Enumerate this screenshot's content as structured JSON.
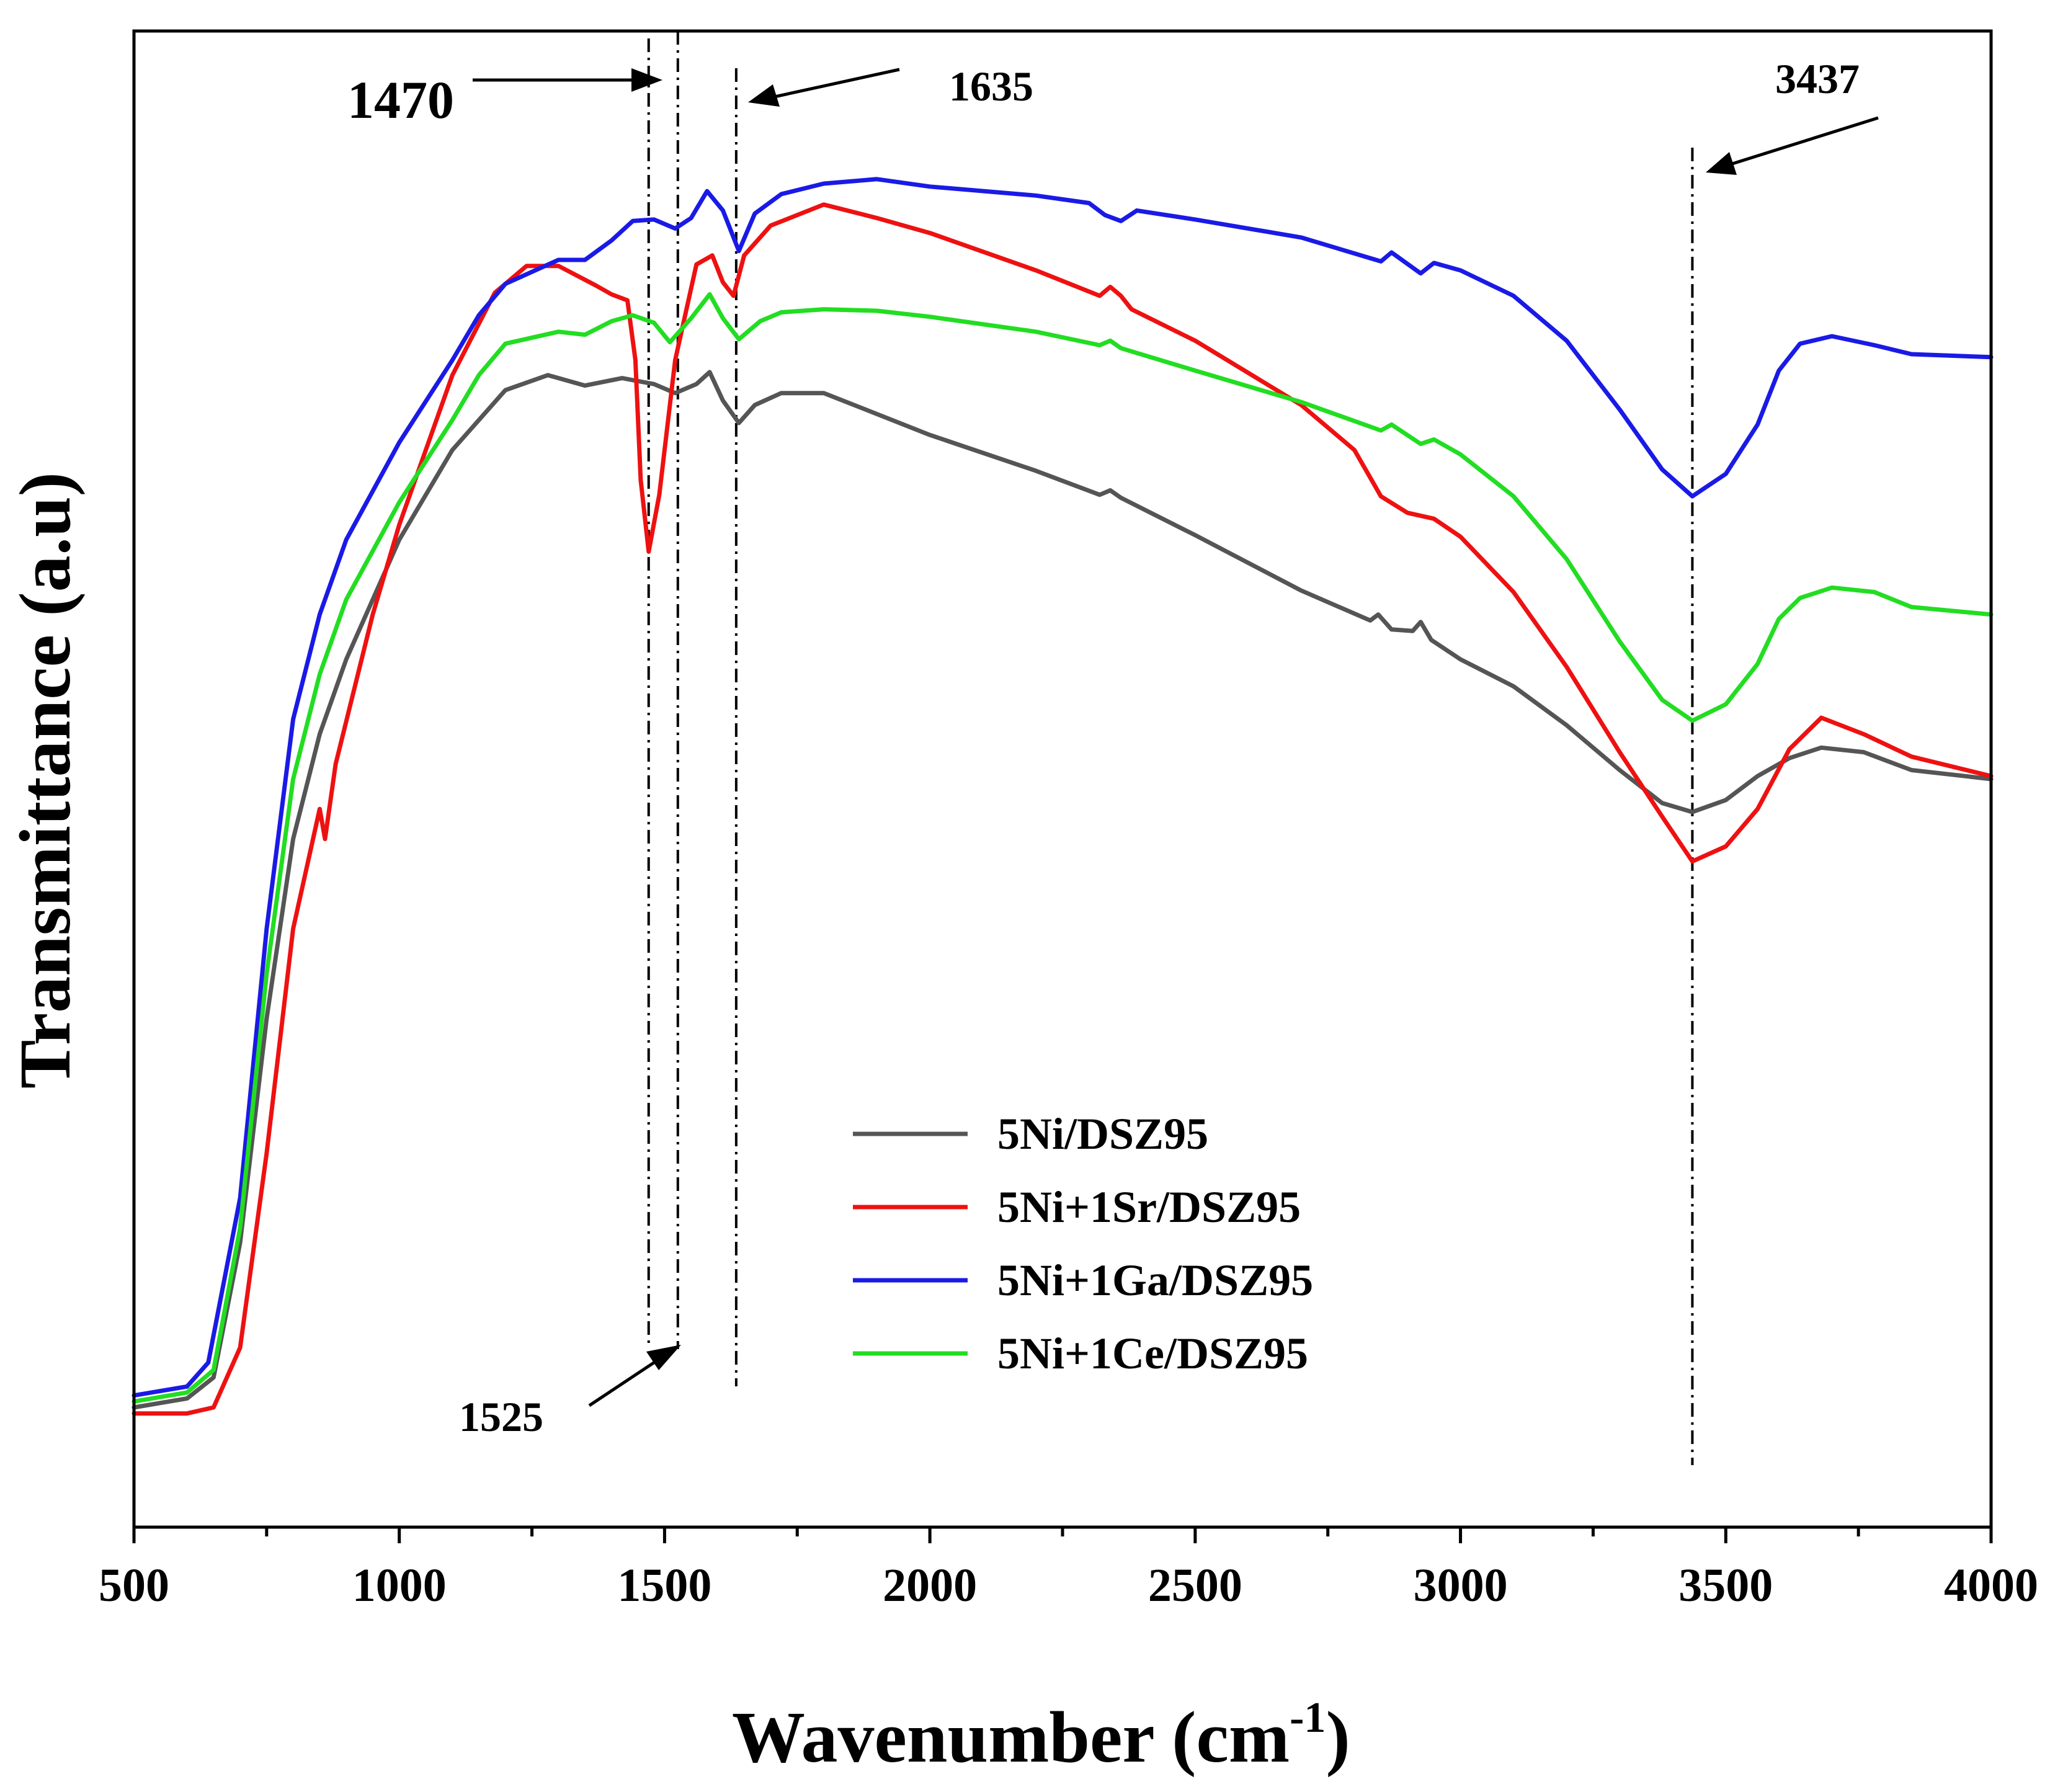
{
  "chart_data": {
    "type": "line",
    "title": "",
    "xlabel": "Wavenumber (cm",
    "xlabel_sup": "-1",
    "xlabel_close": ")",
    "ylabel": "Transmittance (a.u)",
    "xlim": [
      500,
      4000
    ],
    "ylim": [
      0,
      100
    ],
    "x_ticks": [
      500,
      1000,
      1500,
      2000,
      2500,
      3000,
      3500,
      4000
    ],
    "x_tick_labels": [
      "500",
      "1000",
      "1500",
      "2000",
      "2500",
      "3000",
      "3500",
      "4000"
    ],
    "y_ticks_shown": false,
    "legend_position": "lower-center",
    "series": [
      {
        "name": "5Ni/DSZ95",
        "color": "#555555",
        "points": [
          [
            500,
            8.0
          ],
          [
            600,
            8.6
          ],
          [
            650,
            10.0
          ],
          [
            700,
            19
          ],
          [
            750,
            34
          ],
          [
            800,
            46
          ],
          [
            850,
            53
          ],
          [
            900,
            58
          ],
          [
            1000,
            66
          ],
          [
            1100,
            72
          ],
          [
            1200,
            76
          ],
          [
            1280,
            77.0
          ],
          [
            1350,
            76.3
          ],
          [
            1420,
            76.8
          ],
          [
            1480,
            76.4
          ],
          [
            1520,
            75.8
          ],
          [
            1560,
            76.4
          ],
          [
            1585,
            77.2
          ],
          [
            1610,
            75.3
          ],
          [
            1640,
            73.8
          ],
          [
            1670,
            75.0
          ],
          [
            1720,
            75.8
          ],
          [
            1800,
            75.8
          ],
          [
            2000,
            73.0
          ],
          [
            2200,
            70.6
          ],
          [
            2320,
            69.0
          ],
          [
            2340,
            69.3
          ],
          [
            2360,
            68.8
          ],
          [
            2500,
            66.3
          ],
          [
            2700,
            62.6
          ],
          [
            2830,
            60.6
          ],
          [
            2845,
            61.0
          ],
          [
            2870,
            60.0
          ],
          [
            2910,
            59.9
          ],
          [
            2925,
            60.5
          ],
          [
            2945,
            59.3
          ],
          [
            3000,
            58.0
          ],
          [
            3100,
            56.2
          ],
          [
            3200,
            53.6
          ],
          [
            3300,
            50.6
          ],
          [
            3380,
            48.4
          ],
          [
            3437,
            47.8
          ],
          [
            3500,
            48.6
          ],
          [
            3560,
            50.2
          ],
          [
            3620,
            51.4
          ],
          [
            3680,
            52.1
          ],
          [
            3760,
            51.8
          ],
          [
            3850,
            50.6
          ],
          [
            4000,
            50.0
          ]
        ]
      },
      {
        "name": "5Ni+1Sr/DSZ95",
        "color": "#ee1111",
        "points": [
          [
            500,
            7.6
          ],
          [
            600,
            7.6
          ],
          [
            650,
            8.0
          ],
          [
            700,
            12
          ],
          [
            750,
            25
          ],
          [
            800,
            40
          ],
          [
            850,
            48
          ],
          [
            860,
            46
          ],
          [
            880,
            51
          ],
          [
            950,
            61
          ],
          [
            1000,
            67
          ],
          [
            1100,
            77
          ],
          [
            1180,
            82.5
          ],
          [
            1240,
            84.3
          ],
          [
            1300,
            84.3
          ],
          [
            1370,
            83.0
          ],
          [
            1400,
            82.4
          ],
          [
            1430,
            82.0
          ],
          [
            1445,
            78
          ],
          [
            1455,
            70
          ],
          [
            1470,
            65.2
          ],
          [
            1490,
            69
          ],
          [
            1520,
            78
          ],
          [
            1560,
            84.4
          ],
          [
            1590,
            85.0
          ],
          [
            1610,
            83.2
          ],
          [
            1630,
            82.3
          ],
          [
            1650,
            85.0
          ],
          [
            1700,
            87.0
          ],
          [
            1800,
            88.4
          ],
          [
            1900,
            87.5
          ],
          [
            2000,
            86.5
          ],
          [
            2200,
            84.0
          ],
          [
            2320,
            82.3
          ],
          [
            2340,
            82.9
          ],
          [
            2360,
            82.3
          ],
          [
            2380,
            81.4
          ],
          [
            2500,
            79.3
          ],
          [
            2700,
            75.0
          ],
          [
            2800,
            72.0
          ],
          [
            2850,
            68.9
          ],
          [
            2900,
            67.8
          ],
          [
            2950,
            67.4
          ],
          [
            3000,
            66.2
          ],
          [
            3100,
            62.5
          ],
          [
            3200,
            57.5
          ],
          [
            3300,
            51.8
          ],
          [
            3380,
            47.5
          ],
          [
            3437,
            44.5
          ],
          [
            3500,
            45.5
          ],
          [
            3560,
            48.0
          ],
          [
            3620,
            52.0
          ],
          [
            3680,
            54.1
          ],
          [
            3760,
            53.0
          ],
          [
            3850,
            51.5
          ],
          [
            4000,
            50.2
          ]
        ]
      },
      {
        "name": "5Ni+1Ga/DSZ95",
        "color": "#1a1ae6",
        "points": [
          [
            500,
            8.8
          ],
          [
            600,
            9.4
          ],
          [
            640,
            11
          ],
          [
            700,
            22
          ],
          [
            750,
            40
          ],
          [
            800,
            54
          ],
          [
            850,
            61
          ],
          [
            900,
            66
          ],
          [
            1000,
            72.5
          ],
          [
            1100,
            78
          ],
          [
            1150,
            81
          ],
          [
            1200,
            83.1
          ],
          [
            1300,
            84.7
          ],
          [
            1350,
            84.7
          ],
          [
            1400,
            86
          ],
          [
            1440,
            87.3
          ],
          [
            1480,
            87.4
          ],
          [
            1520,
            86.8
          ],
          [
            1550,
            87.5
          ],
          [
            1580,
            89.3
          ],
          [
            1610,
            88.0
          ],
          [
            1640,
            85.3
          ],
          [
            1670,
            87.8
          ],
          [
            1720,
            89.1
          ],
          [
            1800,
            89.8
          ],
          [
            1900,
            90.1
          ],
          [
            2000,
            89.6
          ],
          [
            2200,
            89.0
          ],
          [
            2300,
            88.5
          ],
          [
            2330,
            87.7
          ],
          [
            2360,
            87.3
          ],
          [
            2390,
            88.0
          ],
          [
            2500,
            87.4
          ],
          [
            2700,
            86.2
          ],
          [
            2850,
            84.6
          ],
          [
            2870,
            85.2
          ],
          [
            2925,
            83.8
          ],
          [
            2950,
            84.5
          ],
          [
            3000,
            84.0
          ],
          [
            3100,
            82.3
          ],
          [
            3200,
            79.3
          ],
          [
            3300,
            74.7
          ],
          [
            3380,
            70.7
          ],
          [
            3437,
            68.9
          ],
          [
            3500,
            70.4
          ],
          [
            3560,
            73.7
          ],
          [
            3600,
            77.3
          ],
          [
            3640,
            79.1
          ],
          [
            3700,
            79.6
          ],
          [
            3780,
            79.0
          ],
          [
            3850,
            78.4
          ],
          [
            4000,
            78.2
          ]
        ]
      },
      {
        "name": "5Ni+1Ce/DSZ95",
        "color": "#22dd22",
        "points": [
          [
            500,
            8.4
          ],
          [
            600,
            9.0
          ],
          [
            650,
            10.5
          ],
          [
            700,
            20
          ],
          [
            750,
            37
          ],
          [
            800,
            50
          ],
          [
            850,
            57
          ],
          [
            900,
            62
          ],
          [
            1000,
            68.5
          ],
          [
            1100,
            74
          ],
          [
            1150,
            77
          ],
          [
            1200,
            79.1
          ],
          [
            1300,
            79.9
          ],
          [
            1350,
            79.7
          ],
          [
            1400,
            80.6
          ],
          [
            1440,
            81.0
          ],
          [
            1480,
            80.5
          ],
          [
            1510,
            79.2
          ],
          [
            1550,
            80.8
          ],
          [
            1585,
            82.4
          ],
          [
            1610,
            80.8
          ],
          [
            1640,
            79.4
          ],
          [
            1680,
            80.6
          ],
          [
            1720,
            81.2
          ],
          [
            1800,
            81.4
          ],
          [
            1900,
            81.3
          ],
          [
            2000,
            80.9
          ],
          [
            2200,
            79.9
          ],
          [
            2320,
            79.0
          ],
          [
            2340,
            79.3
          ],
          [
            2360,
            78.8
          ],
          [
            2500,
            77.3
          ],
          [
            2700,
            75.2
          ],
          [
            2850,
            73.3
          ],
          [
            2870,
            73.7
          ],
          [
            2925,
            72.4
          ],
          [
            2950,
            72.7
          ],
          [
            3000,
            71.7
          ],
          [
            3100,
            68.9
          ],
          [
            3200,
            64.7
          ],
          [
            3300,
            59.2
          ],
          [
            3380,
            55.3
          ],
          [
            3437,
            53.9
          ],
          [
            3500,
            55.0
          ],
          [
            3560,
            57.7
          ],
          [
            3600,
            60.7
          ],
          [
            3640,
            62.1
          ],
          [
            3700,
            62.8
          ],
          [
            3780,
            62.5
          ],
          [
            3850,
            61.5
          ],
          [
            4000,
            61.0
          ]
        ]
      }
    ],
    "reference_lines": [
      1470,
      1525,
      1635,
      3437
    ],
    "annotations": [
      {
        "text": "1470",
        "x": 1470
      },
      {
        "text": "1525",
        "x": 1525
      },
      {
        "text": "1635",
        "x": 1635
      },
      {
        "text": "3437",
        "x": 3437
      }
    ]
  }
}
